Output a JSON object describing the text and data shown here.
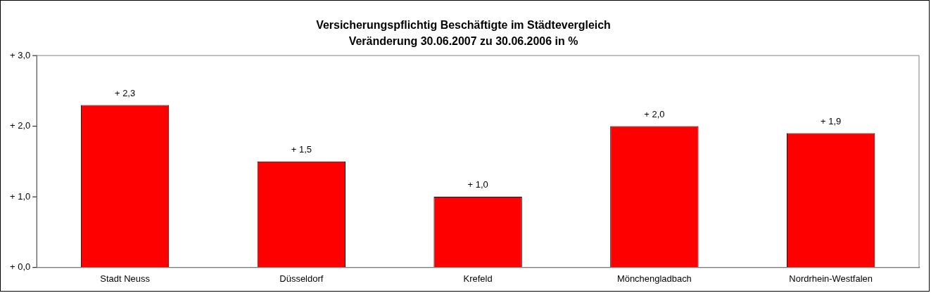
{
  "chart_data": {
    "type": "bar",
    "title": "Versicherungspflichtig Beschäftigte im Städtevergleich",
    "subtitle": "Veränderung 30.06.2007 zu 30.06.2006 in %",
    "categories": [
      "Stadt Neuss",
      "Düsseldorf",
      "Krefeld",
      "Mönchengladbach",
      "Nordrhein-Westfalen"
    ],
    "values": [
      2.3,
      1.5,
      1.0,
      2.0,
      1.9
    ],
    "value_labels": [
      "+ 2,3",
      "+ 1,5",
      "+ 1,0",
      "+ 2,0",
      "+ 1,9"
    ],
    "color": "#ff0000",
    "ylim": [
      0,
      3
    ],
    "yticks": [
      {
        "value": 0,
        "label": "+ 0,0"
      },
      {
        "value": 1,
        "label": "+ 1,0"
      },
      {
        "value": 2,
        "label": "+ 2,0"
      },
      {
        "value": 3,
        "label": "+ 3,0"
      }
    ],
    "grid": false,
    "legend": false
  }
}
